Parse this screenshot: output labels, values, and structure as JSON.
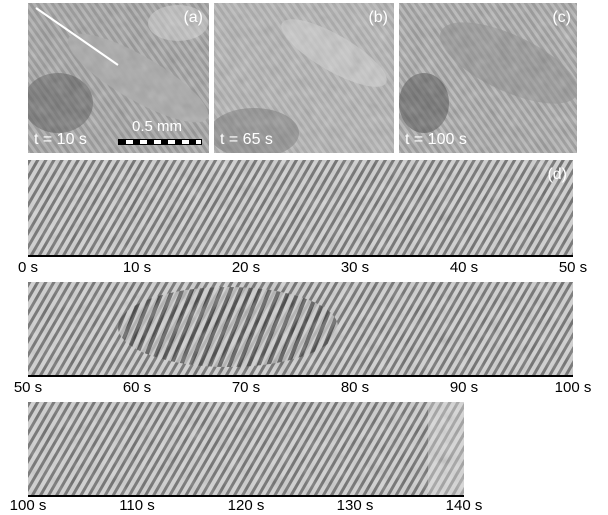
{
  "top_panels": [
    {
      "label": "(a)",
      "time": "t = 10 s",
      "scale": "0.5 mm"
    },
    {
      "label": "(b)",
      "time": "t = 65 s"
    },
    {
      "label": "(c)",
      "time": "t = 100 s"
    }
  ],
  "kymo": {
    "label": "(d)",
    "rows": [
      {
        "ticks": [
          "0 s",
          "10 s",
          "20 s",
          "30 s",
          "40 s",
          "50 s"
        ]
      },
      {
        "ticks": [
          "50 s",
          "60 s",
          "70 s",
          "80 s",
          "90 s",
          "100 s"
        ]
      },
      {
        "ticks": [
          "100 s",
          "110 s",
          "120 s",
          "130 s",
          "140 s"
        ]
      }
    ]
  }
}
